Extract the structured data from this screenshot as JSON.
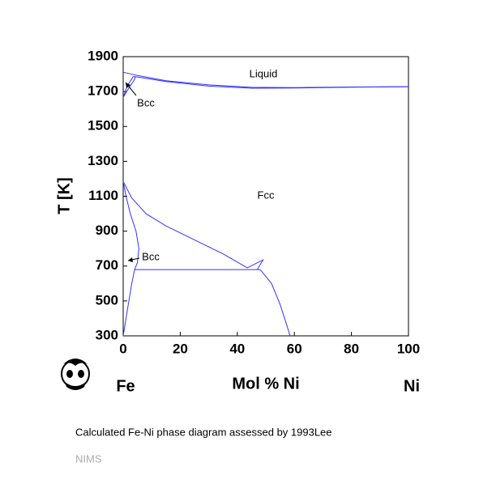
{
  "chart_data": {
    "type": "line",
    "x_label": "Mol % Ni",
    "y_label": "T [K]",
    "xlim": [
      0,
      100
    ],
    "xticks": [
      0,
      20,
      40,
      60,
      80,
      100
    ],
    "ylim": [
      300,
      1900
    ],
    "yticks": [
      300,
      500,
      700,
      900,
      1100,
      1300,
      1500,
      1700,
      1900
    ],
    "series": [
      {
        "color": "#3333ff",
        "x": [
          0,
          5,
          15,
          30,
          45,
          60,
          80,
          100
        ],
        "values": [
          1811,
          1792,
          1762,
          1738,
          1724,
          1723,
          1726,
          1728
        ]
      },
      {
        "color": "#3333ff",
        "x": [
          4.3,
          15,
          30,
          45,
          60,
          80,
          100
        ],
        "values": [
          1785,
          1757,
          1731,
          1719,
          1720,
          1725,
          1728
        ]
      },
      {
        "color": "#3333ff",
        "x": [
          0,
          2,
          4,
          4.3
        ],
        "values": [
          1667,
          1720,
          1770,
          1785
        ]
      },
      {
        "color": "#3333ff",
        "x": [
          0,
          1.5,
          3.5,
          4.3
        ],
        "values": [
          1667,
          1735,
          1785,
          1785
        ]
      },
      {
        "color": "#3333ff",
        "x": [
          0,
          3,
          8,
          15,
          25,
          35,
          43.5
        ],
        "values": [
          1185,
          1090,
          1000,
          930,
          850,
          770,
          690
        ]
      },
      {
        "color": "#3333ff",
        "x": [
          0,
          1,
          2.5,
          4.5,
          5.5,
          5,
          4
        ],
        "values": [
          1185,
          1100,
          1000,
          900,
          800,
          720,
          680
        ]
      },
      {
        "color": "#3333ff",
        "x": [
          4,
          3,
          2,
          1,
          0.3,
          0
        ],
        "values": [
          680,
          600,
          500,
          400,
          330,
          300
        ]
      },
      {
        "color": "#3333ff",
        "x": [
          4,
          43.5,
          48
        ],
        "values": [
          680,
          680,
          680
        ]
      },
      {
        "color": "#3333ff",
        "x": [
          43.5,
          49,
          47
        ],
        "values": [
          690,
          735,
          680
        ]
      },
      {
        "color": "#3333ff",
        "x": [
          48,
          52,
          55,
          57,
          58.5
        ],
        "values": [
          680,
          600,
          480,
          380,
          300
        ]
      }
    ],
    "annotations": [
      "Liquid",
      "Bcc",
      "Fcc",
      "Bcc",
      "Fe",
      "Ni"
    ],
    "caption": "Calculated Fe-Ni phase diagram assessed by 1993Lee",
    "source": "NIMS"
  }
}
